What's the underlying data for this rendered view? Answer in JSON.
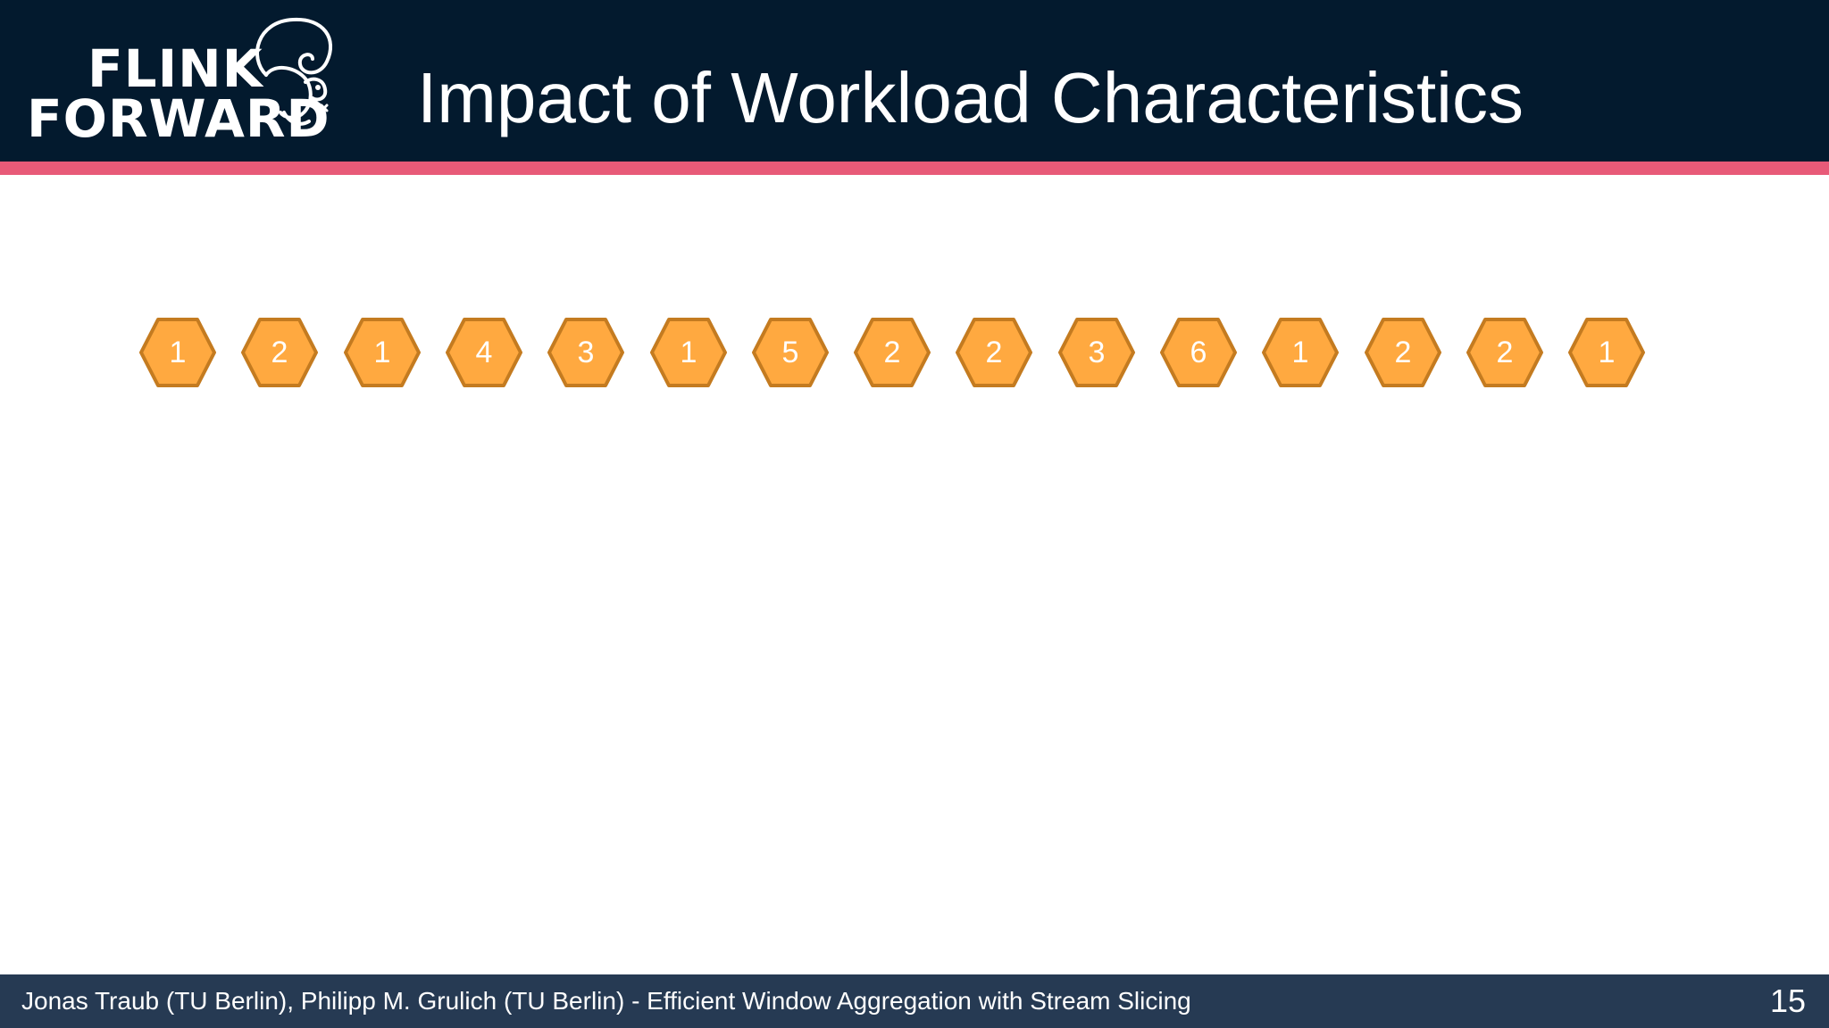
{
  "header": {
    "logo_line1": "FLINK",
    "logo_line2": "FORWARD",
    "title": "Impact of Workload Characteristics",
    "background_color": "#031a2e",
    "accent_color": "#e85a78"
  },
  "stream": {
    "tuple_color": "#ffa940",
    "tuple_border_color": "#c47b20",
    "tuples": [
      "1",
      "2",
      "1",
      "4",
      "3",
      "1",
      "5",
      "2",
      "2",
      "3",
      "6",
      "1",
      "2",
      "2",
      "1"
    ]
  },
  "footer": {
    "text": "Jonas Traub (TU Berlin), Philipp M. Grulich (TU Berlin) - Efficient Window Aggregation with Stream Slicing",
    "page_number": "15",
    "background_color": "#263a53"
  }
}
